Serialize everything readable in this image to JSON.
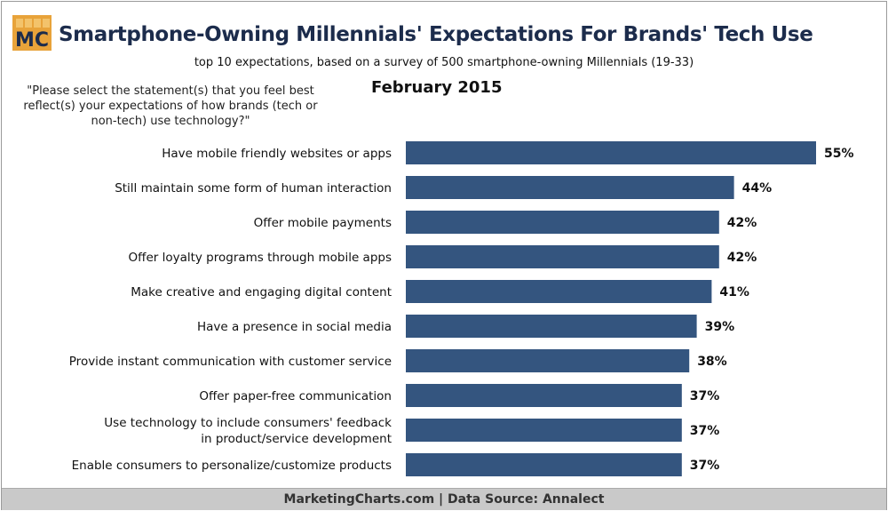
{
  "logo": {
    "text": "MC",
    "color": "#e8a33a"
  },
  "header": {
    "title": "Smartphone-Owning Millennials' Expectations For Brands' Tech Use",
    "subtitle": "top 10 expectations, based on a survey of 500 smartphone-owning Millennials (19-33)",
    "question": "\"Please select the statement(s) that you feel best reflect(s) your expectations of how brands (tech or non-tech) use technology?\"",
    "date": "February 2015"
  },
  "chart_data": {
    "type": "bar",
    "orientation": "horizontal",
    "categories": [
      "Have mobile friendly websites or apps",
      "Still maintain some form of human interaction",
      "Offer mobile payments",
      "Offer loyalty programs through mobile apps",
      "Make creative and engaging digital content",
      "Have a presence in social media",
      "Provide instant communication with customer service",
      "Offer paper-free communication",
      "Use technology to include consumers' feedback in product/service development",
      "Enable consumers to personalize/customize products"
    ],
    "values": [
      55,
      44,
      42,
      42,
      41,
      39,
      38,
      37,
      37,
      37
    ],
    "value_labels": [
      "55%",
      "44%",
      "42%",
      "42%",
      "41%",
      "39%",
      "38%",
      "37%",
      "37%",
      "37%"
    ],
    "bar_color": "#34557f",
    "grid": false
  },
  "footer": {
    "text": "MarketingCharts.com | Data Source: Annalect"
  }
}
